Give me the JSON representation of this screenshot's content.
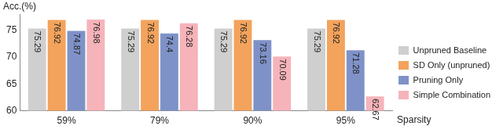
{
  "chart_data": {
    "type": "bar",
    "x_label": "Sparsity",
    "y_label": "Acc.(%)",
    "categories": [
      "59%",
      "79%",
      "90%",
      "95%"
    ],
    "series": [
      {
        "name": "Unpruned Baseline",
        "color": "#cfcfcf",
        "values": [
          75.29,
          75.29,
          75.29,
          75.29
        ]
      },
      {
        "name": "SD Only (unpruned)",
        "color": "#f3a35c",
        "values": [
          76.92,
          76.92,
          76.92,
          76.92
        ]
      },
      {
        "name": "Pruning Only",
        "color": "#7f92c8",
        "values": [
          74.87,
          74.4,
          73.16,
          71.28
        ]
      },
      {
        "name": "Simple Combination",
        "color": "#f6b3ba",
        "values": [
          76.98,
          76.28,
          70.09,
          62.67
        ]
      }
    ],
    "ylim": [
      60,
      78
    ],
    "yticks": [
      60,
      65,
      70,
      75
    ],
    "grid": false,
    "legend": "right",
    "data_labels": true
  }
}
